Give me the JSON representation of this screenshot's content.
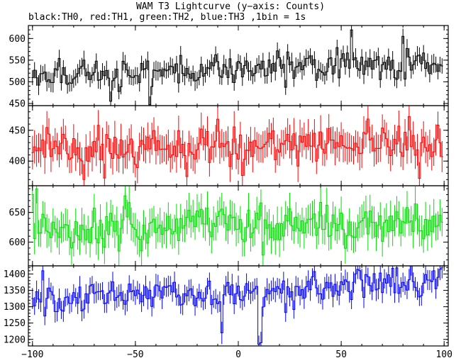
{
  "title": "WAM T3 Lightcurve (y−axis: Counts)",
  "subtitle": "black:TH0, red:TH1, green:TH2, blue:TH3 ,1bin = 1s",
  "chart_data": {
    "type": "line",
    "style": "histogram-step with error bars, 4 stacked panels sharing x axis",
    "xlim": [
      -102,
      102
    ],
    "x_ticks": [
      -100,
      -50,
      0,
      50,
      100
    ],
    "x_tick_labels": [
      "−100",
      "−50",
      "0",
      "50",
      "100"
    ],
    "bin_width": 1,
    "x_range_data": [
      -100,
      99
    ],
    "grid": false,
    "series": [
      {
        "name": "TH0",
        "color": "#000000",
        "ylim": [
          445,
          630
        ],
        "yticks": [
          450,
          500,
          550,
          600
        ],
        "mean_start": 515,
        "mean_end": 545,
        "noise": 22,
        "error": 20,
        "features": [
          [
            55,
            620
          ],
          [
            80,
            605
          ],
          [
            -62,
            455
          ],
          [
            -43,
            447
          ]
        ]
      },
      {
        "name": "TH1",
        "color": "#ff0000",
        "ylim": [
          360,
          490
        ],
        "yticks": [
          400,
          450
        ],
        "mean_start": 420,
        "mean_end": 430,
        "noise": 20,
        "error": 24,
        "features": [
          [
            -75,
            370
          ],
          [
            -25,
            375
          ],
          [
            -10,
            468
          ],
          [
            88,
            372
          ]
        ]
      },
      {
        "name": "TH2",
        "color": "#00dd00",
        "ylim": [
          560,
          695
        ],
        "yticks": [
          600,
          650
        ],
        "mean_start": 625,
        "mean_end": 630,
        "noise": 22,
        "error": 26,
        "features": [
          [
            -100,
            680
          ],
          [
            -98,
            690
          ],
          [
            12,
            578
          ],
          [
            -58,
            585
          ]
        ]
      },
      {
        "name": "TH3",
        "color": "#0000ff",
        "ylim": [
          1180,
          1425
        ],
        "yticks": [
          1200,
          1250,
          1300,
          1350,
          1400
        ],
        "mean_start": 1310,
        "mean_end": 1380,
        "noise": 30,
        "error": 30,
        "features": [
          [
            10,
            1185
          ],
          [
            11,
            1190
          ],
          [
            -8,
            1220
          ],
          [
            -95,
            1410
          ],
          [
            95,
            1410
          ]
        ]
      }
    ]
  }
}
